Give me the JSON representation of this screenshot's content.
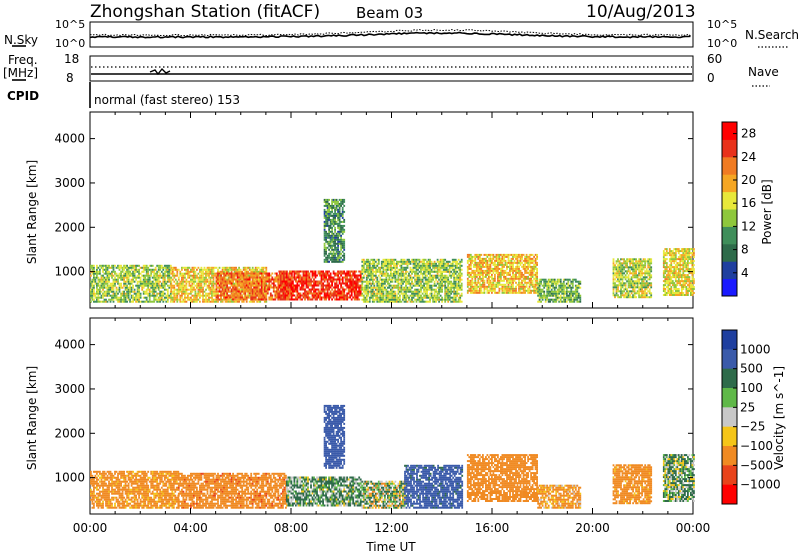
{
  "header": {
    "title": "Zhongshan Station (fitACF)",
    "beam": "Beam 03",
    "date": "10/Aug/2013"
  },
  "nsky_panel": {
    "left_label": "N.Sky",
    "left_ticks": [
      "10^5",
      "10^0"
    ],
    "right_label": "N.Search",
    "right_ticks": [
      "10^5",
      "10^0"
    ]
  },
  "freq_panel": {
    "left_label_1": "Freq.",
    "left_label_2": "[MHz]",
    "left_ticks": [
      "18",
      "8"
    ],
    "right_label": "Nave",
    "right_ticks": [
      "60",
      "0"
    ]
  },
  "cpid": {
    "label": "CPID",
    "text": "normal (fast stereo) 153"
  },
  "colors": {
    "power_scale": [
      "#1a1aff",
      "#1f3f9f",
      "#2e6b4a",
      "#3f8e5a",
      "#8ec73c",
      "#e8e83a",
      "#f5a623",
      "#f07b22",
      "#e8321b",
      "#ff0000"
    ],
    "velocity_scale": [
      "#1f3f9f",
      "#3a5aaa",
      "#2e6b4a",
      "#5fb848",
      "#c8c8c8",
      "#f5c518",
      "#f08a22",
      "#e8431b",
      "#ff0000"
    ]
  },
  "chart_data": [
    {
      "type": "heatmap",
      "name": "Power",
      "xlabel": "",
      "ylabel": "Slant Range [km]",
      "x_ticks": [
        "00:00",
        "04:00",
        "08:00",
        "12:00",
        "16:00",
        "20:00",
        "00:00"
      ],
      "y_ticks": [
        1000,
        2000,
        3000,
        4000
      ],
      "ylim": [
        180,
        4600
      ],
      "colorbar_label": "Power [dB]",
      "colorbar_ticks": [
        "4",
        "8",
        "12",
        "16",
        "20",
        "24",
        "28"
      ],
      "colorbar_range": [
        0,
        30
      ],
      "echo_regions": [
        {
          "t0": 0.0,
          "t1": 3.2,
          "r0": 300,
          "r1": 1150,
          "level": 14
        },
        {
          "t0": 3.2,
          "t1": 7.0,
          "r0": 300,
          "r1": 1100,
          "level": 18
        },
        {
          "t0": 5.0,
          "t1": 8.0,
          "r0": 350,
          "r1": 950,
          "level": 24
        },
        {
          "t0": 7.5,
          "t1": 10.8,
          "r0": 350,
          "r1": 1000,
          "level": 27
        },
        {
          "t0": 9.3,
          "t1": 10.1,
          "r0": 1200,
          "r1": 2600,
          "level": 9
        },
        {
          "t0": 10.8,
          "t1": 14.8,
          "r0": 300,
          "r1": 1250,
          "level": 14
        },
        {
          "t0": 15.0,
          "t1": 17.8,
          "r0": 500,
          "r1": 1400,
          "level": 19
        },
        {
          "t0": 17.8,
          "t1": 19.5,
          "r0": 300,
          "r1": 800,
          "level": 12
        },
        {
          "t0": 20.8,
          "t1": 22.3,
          "r0": 400,
          "r1": 1300,
          "level": 15
        },
        {
          "t0": 22.8,
          "t1": 24.0,
          "r0": 450,
          "r1": 1500,
          "level": 17
        }
      ]
    },
    {
      "type": "heatmap",
      "name": "Velocity",
      "xlabel": "Time UT",
      "ylabel": "Slant Range [km]",
      "x_ticks": [
        "00:00",
        "04:00",
        "08:00",
        "12:00",
        "16:00",
        "20:00",
        "00:00"
      ],
      "y_ticks": [
        1000,
        2000,
        3000,
        4000
      ],
      "ylim": [
        180,
        4600
      ],
      "colorbar_label": "Velocity [m s^-1]",
      "colorbar_ticks": [
        "1000",
        "500",
        "100",
        "25",
        "−25",
        "−100",
        "−500",
        "−1000"
      ],
      "echo_regions": [
        {
          "t0": 0.0,
          "t1": 3.5,
          "r0": 300,
          "r1": 1150,
          "level": -150
        },
        {
          "t0": 3.5,
          "t1": 7.8,
          "r0": 300,
          "r1": 1100,
          "level": -200
        },
        {
          "t0": 7.8,
          "t1": 10.8,
          "r0": 350,
          "r1": 1000,
          "level": 80
        },
        {
          "t0": 9.3,
          "t1": 10.1,
          "r0": 1200,
          "r1": 2600,
          "level": 500
        },
        {
          "t0": 10.8,
          "t1": 12.5,
          "r0": 300,
          "r1": 900,
          "level": 20
        },
        {
          "t0": 12.5,
          "t1": 14.8,
          "r0": 300,
          "r1": 1250,
          "level": 400
        },
        {
          "t0": 15.0,
          "t1": 17.8,
          "r0": 450,
          "r1": 1500,
          "level": -180
        },
        {
          "t0": 17.8,
          "t1": 19.5,
          "r0": 300,
          "r1": 800,
          "level": -120
        },
        {
          "t0": 20.8,
          "t1": 22.3,
          "r0": 400,
          "r1": 1300,
          "level": -160
        },
        {
          "t0": 22.8,
          "t1": 24.0,
          "r0": 450,
          "r1": 1500,
          "level": 60
        }
      ]
    }
  ]
}
